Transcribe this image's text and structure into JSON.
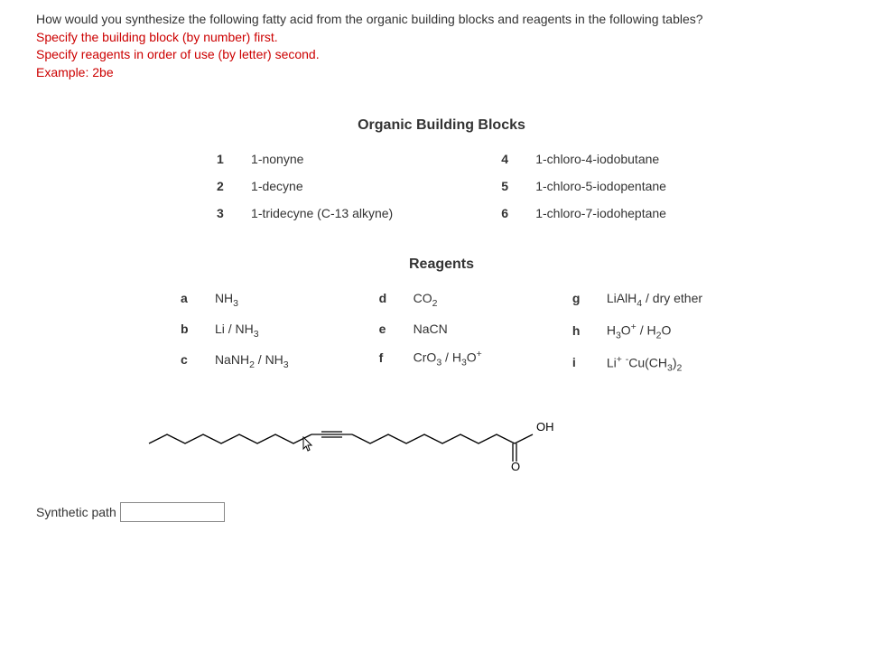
{
  "question": {
    "line1": "How would you synthesize the following fatty acid from the organic building blocks and reagents in the following tables?",
    "line2": "Specify the building block (by number) first.",
    "line3": "Specify reagents in order of use (by letter) second.",
    "line4": "Example: 2be"
  },
  "building_blocks": {
    "title": "Organic Building Blocks",
    "left": [
      {
        "num": "1",
        "name": "1-nonyne"
      },
      {
        "num": "2",
        "name": "1-decyne"
      },
      {
        "num": "3",
        "name": "1-tridecyne (C-13 alkyne)"
      }
    ],
    "right": [
      {
        "num": "4",
        "name": "1-chloro-4-iodobutane"
      },
      {
        "num": "5",
        "name": "1-chloro-5-iodopentane"
      },
      {
        "num": "6",
        "name": "1-chloro-7-iodoheptane"
      }
    ]
  },
  "reagents": {
    "title": "Reagents",
    "col1": [
      {
        "letter": "a",
        "formula": "NH<sub>3</sub>"
      },
      {
        "letter": "b",
        "formula": "Li / NH<sub>3</sub>"
      },
      {
        "letter": "c",
        "formula": "NaNH<sub>2</sub> / NH<sub>3</sub>"
      }
    ],
    "col2": [
      {
        "letter": "d",
        "formula": "CO<sub>2</sub>"
      },
      {
        "letter": "e",
        "formula": "NaCN"
      },
      {
        "letter": "f",
        "formula": "CrO<sub>3</sub> / H<sub>3</sub>O<sup>+</sup>"
      }
    ],
    "col3": [
      {
        "letter": "g",
        "formula": "LiAlH<sub>4</sub> / dry ether"
      },
      {
        "letter": "h",
        "formula": "H<sub>3</sub>O<sup>+</sup> / H<sub>2</sub>O"
      },
      {
        "letter": "i",
        "formula": "Li<sup>+</sup> <sup>-</sup>Cu(CH<sub>3</sub>)<sub>2</sub>"
      }
    ]
  },
  "structure": {
    "oh_label": "OH",
    "o_label": "O"
  },
  "input": {
    "label": "Synthetic path",
    "value": ""
  },
  "colors": {
    "question_black": "#333333",
    "question_red": "#cc0000",
    "background": "#ffffff"
  }
}
